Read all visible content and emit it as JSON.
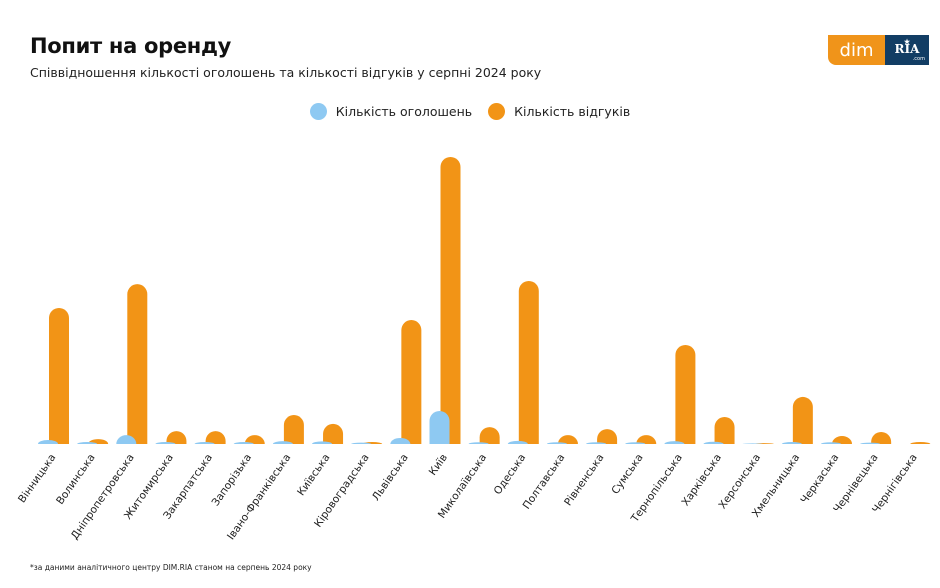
{
  "header": {
    "title": "Попит на оренду",
    "subtitle": "Співвідношення кількості оголошень та кількості відгуків у серпні 2024 року"
  },
  "logo": {
    "left_text": "dim",
    "right_text": "RIA",
    "right_subtext": ".com"
  },
  "footnote": "*за даними аналітичного центру DIM.RIA станом на серпень 2024 року",
  "colors": {
    "listings": "#8ec9f2",
    "responses": "#f29416"
  },
  "chart_data": {
    "type": "bar",
    "title": "Попит на оренду",
    "subtitle": "Співвідношення кількості оголошень та кількості відгуків у серпні 2024 року",
    "xlabel": "",
    "ylabel": "",
    "units": "relative (Київ responses = 100; no axis shown)",
    "ylim": [
      0,
      100
    ],
    "grid": false,
    "legend_position": "top-center",
    "categories": [
      "Вінницька",
      "Волинська",
      "Дніпропетровська",
      "Житомирська",
      "Закарпатська",
      "Запорізька",
      "Івано-Франківська",
      "Київська",
      "Кіровоградська",
      "Львівська",
      "Київ",
      "Миколаївська",
      "Одеська",
      "Полтавська",
      "Рівненська",
      "Сумська",
      "Тернопільська",
      "Харківська",
      "Херсонська",
      "Хмельницька",
      "Черкаська",
      "Чернівецька",
      "Чернігівська"
    ],
    "series": [
      {
        "name": "Кількість оголошень",
        "color": "#8ec9f2",
        "values": [
          1.4,
          0.7,
          3.1,
          0.7,
          0.7,
          0.7,
          1.0,
          0.9,
          0.5,
          2.1,
          11.5,
          0.6,
          1.1,
          0.6,
          0.6,
          0.6,
          1.0,
          0.8,
          0.2,
          0.7,
          0.6,
          0.5,
          0
        ]
      },
      {
        "name": "Кількість відгуків",
        "color": "#f29416",
        "values": [
          47.4,
          1.7,
          55.7,
          4.5,
          4.5,
          3.1,
          10.1,
          7.0,
          0.7,
          43.2,
          100,
          5.9,
          56.8,
          3.1,
          5.2,
          3.1,
          34.5,
          9.4,
          0.3,
          16.4,
          2.8,
          4.2,
          0.7
        ]
      }
    ]
  }
}
